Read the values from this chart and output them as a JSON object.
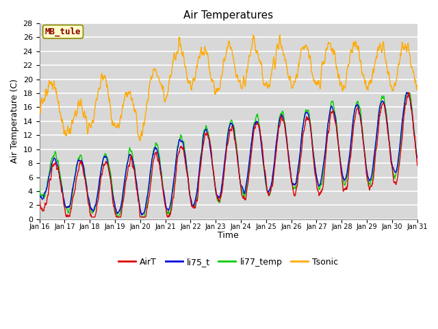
{
  "title": "Air Temperatures",
  "xlabel": "Time",
  "ylabel": "Air Temperature (C)",
  "ylim": [
    0,
    28
  ],
  "yticks": [
    0,
    2,
    4,
    6,
    8,
    10,
    12,
    14,
    16,
    18,
    20,
    22,
    24,
    26,
    28
  ],
  "xtick_labels": [
    "Jan 16",
    "Jan 17",
    "Jan 18",
    "Jan 19",
    "Jan 20",
    "Jan 21",
    "Jan 22",
    "Jan 23",
    "Jan 24",
    "Jan 25",
    "Jan 26",
    "Jan 27",
    "Jan 28",
    "Jan 29",
    "Jan 30",
    "Jan 31"
  ],
  "colors": {
    "AirT": "#dd0000",
    "li75_t": "#0000dd",
    "li77_temp": "#00cc00",
    "Tsonic": "#ffaa00"
  },
  "lw": 1.0,
  "legend_label": "MB_tule",
  "bg_color": "#d8d8d8",
  "grid_color": "white",
  "title_fontsize": 11,
  "axis_fontsize": 9,
  "tick_fontsize": 8,
  "legend_fontsize": 9
}
